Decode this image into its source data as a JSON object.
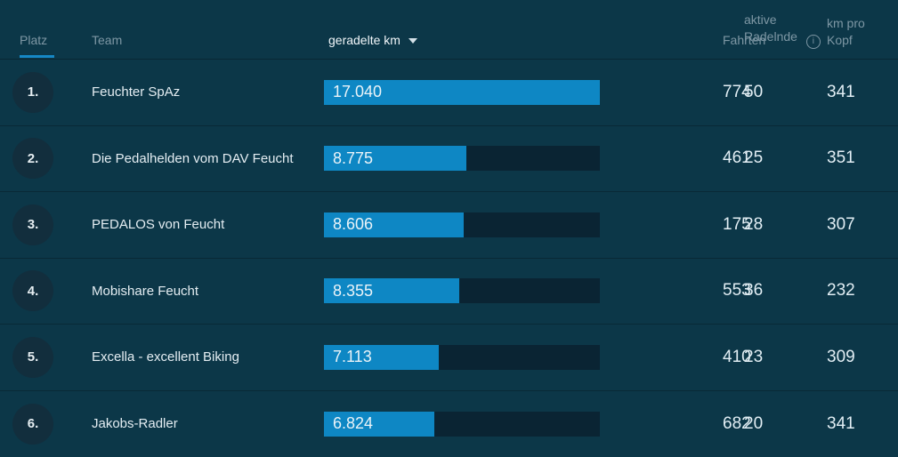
{
  "table": {
    "columns": {
      "platz": "Platz",
      "team": "Team",
      "km": "geradelte km",
      "fahrten": "Fahrten",
      "aktive_line1": "aktive",
      "aktive_line2": "Radelnde",
      "km_pro_line1": "km pro",
      "km_pro_line2": "Kopf"
    },
    "sort": {
      "active_column": "Platz",
      "dropdown_column": "geradelte km"
    },
    "info_icon_glyph": "i"
  },
  "bars": {
    "max_value": 17040,
    "fill_color": "#0e87c4",
    "track_color": "#0a2433"
  },
  "colors": {
    "background": "#0c3748",
    "rank_circle": "#122e3d",
    "header_text": "#7e97a4",
    "body_text": "#e4edf2",
    "accent_blue": "#1687c5"
  },
  "rows": [
    {
      "rank": "1.",
      "team": "Feuchter SpAz",
      "km_label": "17.040",
      "km_value": 17040,
      "fahrten": "774",
      "aktive": "50",
      "km_pro_kopf": "341"
    },
    {
      "rank": "2.",
      "team": "Die Pedalhelden vom DAV Feucht",
      "km_label": "8.775",
      "km_value": 8775,
      "fahrten": "461",
      "aktive": "25",
      "km_pro_kopf": "351"
    },
    {
      "rank": "3.",
      "team": "PEDALOS von Feucht",
      "km_label": "8.606",
      "km_value": 8606,
      "fahrten": "175",
      "aktive": "28",
      "km_pro_kopf": "307"
    },
    {
      "rank": "4.",
      "team": "Mobishare Feucht",
      "km_label": "8.355",
      "km_value": 8355,
      "fahrten": "553",
      "aktive": "36",
      "km_pro_kopf": "232"
    },
    {
      "rank": "5.",
      "team": "Excella - excellent Biking",
      "km_label": "7.113",
      "km_value": 7113,
      "fahrten": "410",
      "aktive": "23",
      "km_pro_kopf": "309"
    },
    {
      "rank": "6.",
      "team": "Jakobs-Radler",
      "km_label": "6.824",
      "km_value": 6824,
      "fahrten": "682",
      "aktive": "20",
      "km_pro_kopf": "341"
    }
  ]
}
